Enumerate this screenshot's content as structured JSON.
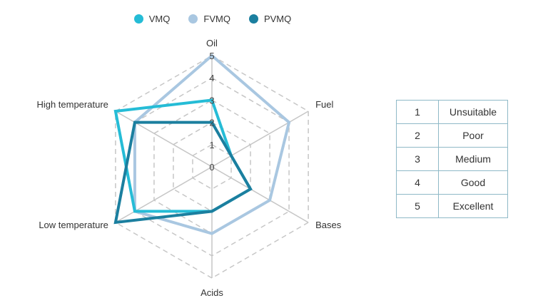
{
  "chart_data": {
    "type": "radar",
    "axes": [
      "Oil",
      "Fuel",
      "Bases",
      "Acids",
      "Low temperature",
      "High temperature"
    ],
    "scale": [
      0,
      5
    ],
    "ticks": [
      "0",
      "1",
      "2",
      "3",
      "4",
      "5"
    ],
    "grid": true,
    "legend_position": "top",
    "series": [
      {
        "name": "VMQ",
        "color": "#25bcd6",
        "values": [
          3,
          1,
          2,
          2,
          4,
          5
        ]
      },
      {
        "name": "FVMQ",
        "color": "#a9c7e1",
        "values": [
          5,
          4,
          3,
          3,
          4,
          4
        ]
      },
      {
        "name": "PVMQ",
        "color": "#1b7f9f",
        "values": [
          2,
          1,
          2,
          2,
          5,
          4
        ]
      }
    ]
  },
  "rating_scale": [
    {
      "value": "1",
      "label": "Unsuitable"
    },
    {
      "value": "2",
      "label": "Poor"
    },
    {
      "value": "3",
      "label": "Medium"
    },
    {
      "value": "4",
      "label": "Good"
    },
    {
      "value": "5",
      "label": "Excellent"
    }
  ]
}
